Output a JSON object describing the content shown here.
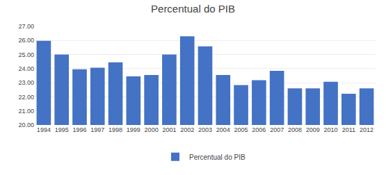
{
  "chart_data": {
    "type": "bar",
    "title": "Percentual do PIB",
    "categories": [
      "1994",
      "1995",
      "1996",
      "1997",
      "1998",
      "1999",
      "2000",
      "2001",
      "2002",
      "2003",
      "2004",
      "2005",
      "2006",
      "2007",
      "2008",
      "2009",
      "2010",
      "2011",
      "2012"
    ],
    "series": [
      {
        "name": "Percentual do PIB",
        "color": "#4472c4",
        "values": [
          25.98,
          25.0,
          23.95,
          24.07,
          24.45,
          23.45,
          23.55,
          25.0,
          26.3,
          25.58,
          23.55,
          22.83,
          23.18,
          23.85,
          22.6,
          22.6,
          23.07,
          22.22,
          22.6
        ]
      }
    ],
    "ylim": [
      20.0,
      27.0
    ],
    "yticks": [
      {
        "value": 20,
        "label": "20.00"
      },
      {
        "value": 21,
        "label": "21.00"
      },
      {
        "value": 22,
        "label": "22.00"
      },
      {
        "value": 23,
        "label": "23.00"
      },
      {
        "value": 24,
        "label": "24.00"
      },
      {
        "value": 25,
        "label": "25.00"
      },
      {
        "value": 26,
        "label": "26.00"
      },
      {
        "value": 27,
        "label": "27.00"
      }
    ],
    "grid": true,
    "legend": "bottom"
  }
}
